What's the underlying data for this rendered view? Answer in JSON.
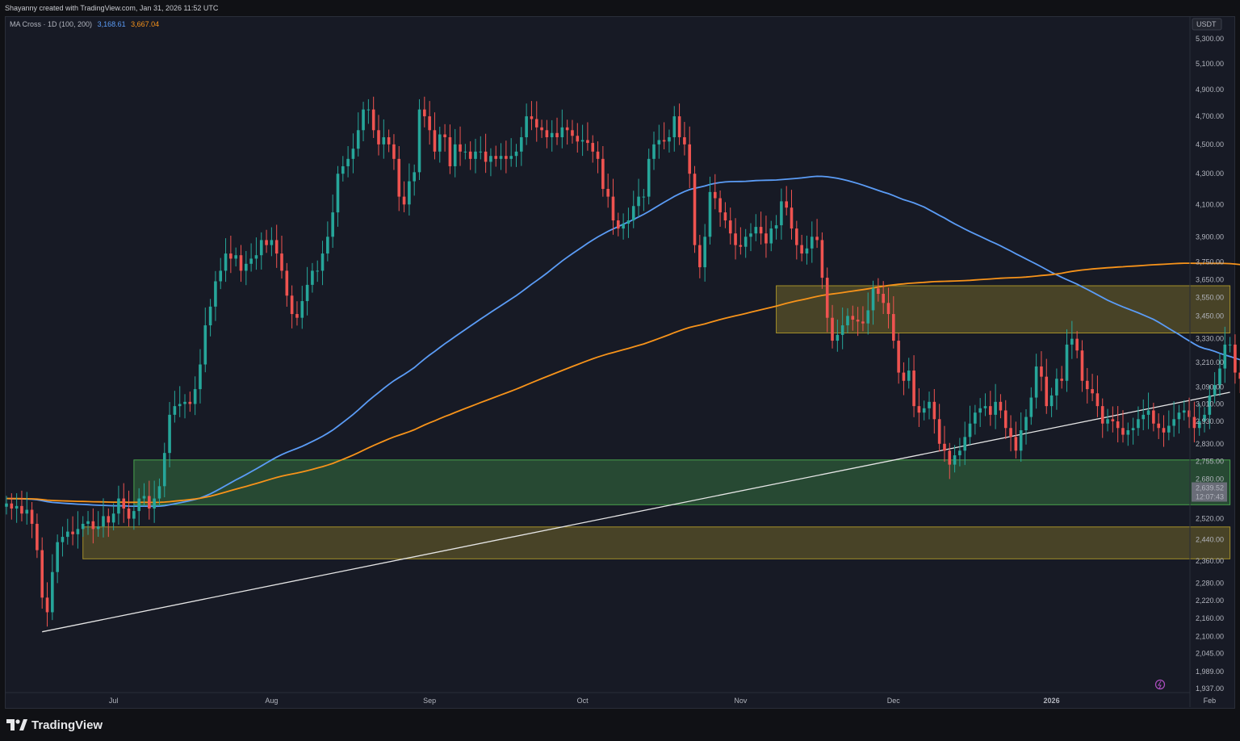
{
  "header": {
    "created_text": "Shayanny created with TradingView.com, Jan 31, 2026 11:52 UTC",
    "indicator_label": "MA Cross · 1D (100, 200)",
    "ma100_value": "3,168.61",
    "ma200_value": "3,667.04"
  },
  "footer": {
    "brand": "TradingView"
  },
  "colors": {
    "background": "#171a25",
    "up_candle": "#26a69a",
    "down_candle": "#ef5350",
    "ma100": "#5b9cf6",
    "ma200": "#f7931a",
    "trendline": "#e6e6e6",
    "green_zone": "#4caf50",
    "yellow_zone": "#b09a2a"
  },
  "chart_data": {
    "type": "candlestick",
    "title": "",
    "quote_currency": "USDT",
    "y_scale": "log",
    "ylim": [
      1920,
      5400
    ],
    "y_ticks": [
      "5,300.00",
      "5,100.00",
      "4,900.00",
      "4,700.00",
      "4,500.00",
      "4,300.00",
      "4,100.00",
      "3,900.00",
      "3,750.00",
      "3,650.00",
      "3,550.00",
      "3,450.00",
      "3,330.00",
      "3,210.00",
      "3,090.00",
      "3,010.00",
      "2,930.00",
      "2,830.00",
      "2,755.00",
      "2,680.00",
      "2,520.00",
      "2,440.00",
      "2,360.00",
      "2,280.00",
      "2,220.00",
      "2,160.00",
      "2,100.00",
      "2,045.00",
      "1,989.00",
      "1,937.00"
    ],
    "x_ticks": [
      "Jul",
      "Aug",
      "Sep",
      "Oct",
      "Nov",
      "Dec",
      "2026",
      "Feb"
    ],
    "xlim": [
      "2025-06-10",
      "2026-02-05"
    ],
    "last_price": "2,639.52",
    "countdown": "12:07:43",
    "grid": false,
    "ohlc_closes": [
      2580,
      2560,
      2570,
      2540,
      2555,
      2500,
      2400,
      2230,
      2180,
      2320,
      2430,
      2450,
      2470,
      2460,
      2480,
      2500,
      2510,
      2480,
      2490,
      2530,
      2505,
      2540,
      2600,
      2560,
      2520,
      2550,
      2600,
      2610,
      2560,
      2600,
      2650,
      2790,
      2960,
      3000,
      3010,
      3020,
      3010,
      3080,
      3200,
      3400,
      3500,
      3640,
      3700,
      3800,
      3770,
      3790,
      3700,
      3740,
      3770,
      3790,
      3880,
      3850,
      3880,
      3800,
      3700,
      3560,
      3460,
      3440,
      3530,
      3620,
      3700,
      3700,
      3800,
      3900,
      4050,
      4300,
      4350,
      4400,
      4470,
      4600,
      4750,
      4750,
      4600,
      4500,
      4550,
      4500,
      4400,
      4150,
      4100,
      4250,
      4310,
      4750,
      4700,
      4600,
      4450,
      4570,
      4550,
      4350,
      4500,
      4450,
      4450,
      4400,
      4450,
      4450,
      4380,
      4420,
      4400,
      4420,
      4400,
      4420,
      4450,
      4550,
      4700,
      4680,
      4620,
      4600,
      4550,
      4580,
      4550,
      4620,
      4600,
      4560,
      4520,
      4530,
      4510,
      4450,
      4400,
      4200,
      4150,
      4000,
      3950,
      3980,
      4000,
      4090,
      4150,
      4150,
      4400,
      4500,
      4530,
      4520,
      4550,
      4700,
      4550,
      4500,
      4300,
      3850,
      3720,
      3900,
      4180,
      4140,
      4050,
      4000,
      3920,
      3850,
      3840,
      3900,
      3920,
      3960,
      3920,
      3860,
      3950,
      3970,
      4120,
      4080,
      3950,
      3850,
      3800,
      3830,
      3900,
      3880,
      3660,
      3440,
      3320,
      3350,
      3400,
      3450,
      3430,
      3420,
      3410,
      3480,
      3600,
      3570,
      3520,
      3460,
      3320,
      3160,
      3120,
      3170,
      3000,
      2970,
      2990,
      3020,
      2940,
      2830,
      2800,
      2740,
      2780,
      2800,
      2860,
      2920,
      2970,
      2990,
      3000,
      2960,
      3020,
      2980,
      2900,
      2860,
      2800,
      2890,
      2950,
      3040,
      3190,
      3140,
      3000,
      3050,
      3130,
      3120,
      3300,
      3330,
      3270,
      3120,
      3080,
      3060,
      3000,
      2920,
      2940,
      2930,
      2900,
      2870,
      2890,
      2900,
      2940,
      2960,
      2980,
      2920,
      2900,
      2880,
      2910,
      2940,
      2970,
      2980,
      2950,
      2900,
      2930,
      2960,
      3050,
      3100,
      3180,
      3300,
      3300,
      3160,
      3130,
      3050,
      3060,
      3090,
      3090,
      3150,
      3250,
      3320,
      3330,
      3310,
      3240,
      3200,
      3180,
      2990,
      2940,
      2970,
      2990,
      2970,
      2940,
      2810,
      2900,
      3010,
      3020,
      2830,
      2700,
      2640
    ]
  }
}
